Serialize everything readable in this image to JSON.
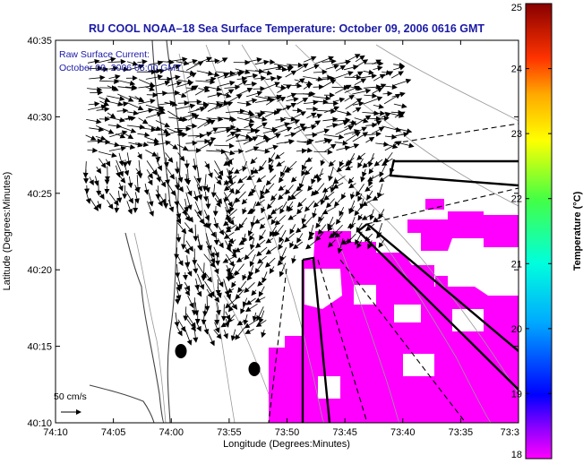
{
  "chart_data": {
    "type": "map",
    "title": "RU COOL  NOAA–18  Sea Surface Temperature:  October 09, 2006 0616 GMT",
    "annotation_line1": "Raw Surface Current:",
    "annotation_line2": "October 09, 2006 05:00 GMT",
    "xlabel": "Longitude (Degrees:Minutes)",
    "ylabel": "Latitude (Degrees:Minutes)",
    "x_ticks": [
      "74:10",
      "74:05",
      "74:00",
      "73:55",
      "73:50",
      "73:45",
      "73:40",
      "73:35",
      "73:3"
    ],
    "y_ticks": [
      "40:35",
      "40:30",
      "40:25",
      "40:20",
      "40:15",
      "40:10"
    ],
    "colorbar": {
      "label": "Temperature (°C)",
      "ticks": [
        "25",
        "24",
        "23",
        "22",
        "21",
        "20",
        "19",
        "18"
      ],
      "range": [
        18,
        25
      ]
    },
    "scale_vector_label": "50 cm/s",
    "sst_patch_color": "#ff00ff"
  }
}
